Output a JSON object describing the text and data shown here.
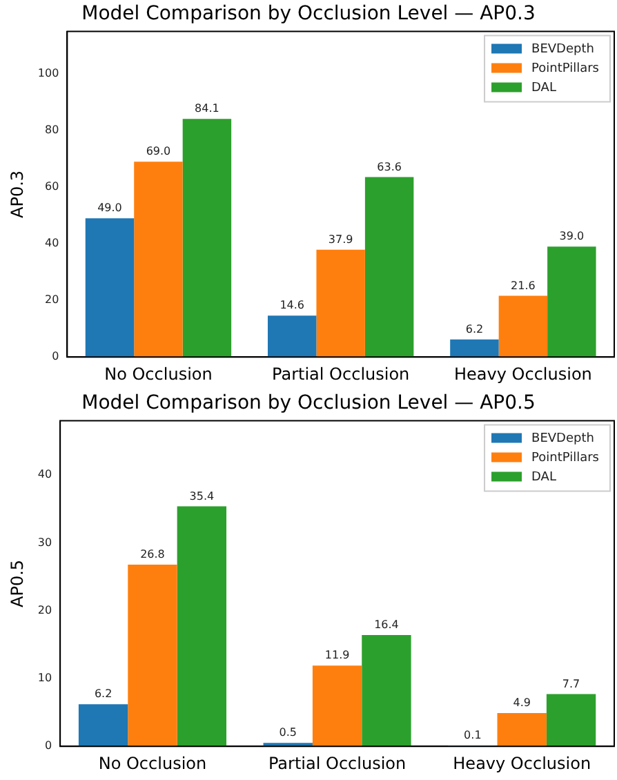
{
  "chart_data": [
    {
      "type": "bar",
      "title": "Model Comparison by Occlusion Level — AP0.3",
      "ylabel": "AP0.3",
      "categories": [
        "No Occlusion",
        "Partial Occlusion",
        "Heavy Occlusion"
      ],
      "series": [
        {
          "name": "BEVDepth",
          "color": "#1f77b4",
          "values": [
            49,
            14.6,
            6.2
          ],
          "value_labels": [
            "49.0",
            "14.6",
            "6.2"
          ]
        },
        {
          "name": "PointPillars",
          "color": "#ff7f0e",
          "values": [
            69,
            37.9,
            21.6
          ],
          "value_labels": [
            "69.0",
            "37.9",
            "21.6"
          ]
        },
        {
          "name": "DAL",
          "color": "#2ca02c",
          "values": [
            84.1,
            63.6,
            39
          ],
          "value_labels": [
            "84.1",
            "63.6",
            "39.0"
          ]
        }
      ],
      "ylim": [
        0,
        115
      ],
      "yticks": [
        0,
        20,
        40,
        60,
        80,
        100
      ],
      "legend": "top right",
      "grid": false
    },
    {
      "type": "bar",
      "title": "Model Comparison by Occlusion Level — AP0.5",
      "ylabel": "AP0.5",
      "categories": [
        "No Occlusion",
        "Partial Occlusion",
        "Heavy Occlusion"
      ],
      "series": [
        {
          "name": "BEVDepth",
          "color": "#1f77b4",
          "values": [
            6.2,
            0.5,
            0.1
          ],
          "value_labels": [
            "6.2",
            "0.5",
            "0.1"
          ]
        },
        {
          "name": "PointPillars",
          "color": "#ff7f0e",
          "values": [
            26.8,
            11.9,
            4.9
          ],
          "value_labels": [
            "26.8",
            "11.9",
            "4.9"
          ]
        },
        {
          "name": "DAL",
          "color": "#2ca02c",
          "values": [
            35.4,
            16.4,
            7.7
          ],
          "value_labels": [
            "35.4",
            "16.4",
            "7.7"
          ]
        }
      ],
      "ylim": [
        0,
        48
      ],
      "yticks": [
        0,
        10,
        20,
        30,
        40
      ],
      "legend": "top right",
      "grid": false
    }
  ]
}
